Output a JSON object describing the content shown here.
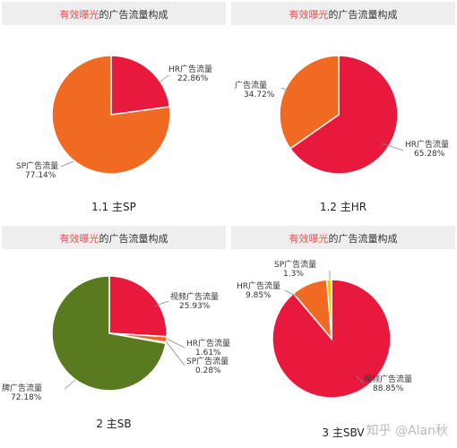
{
  "panels": [
    {
      "title_accent": "有效曝光",
      "title_rest": "的广告流量构成",
      "caption": "1.1 主SP",
      "chart_data": {
        "type": "pie",
        "title": "有效曝光的广告流量构成",
        "slices": [
          {
            "label": "HR广告流量",
            "value": 22.86,
            "display": "22.86%",
            "color": "#e8193d"
          },
          {
            "label": "SP广告流量",
            "value": 77.14,
            "display": "77.14%",
            "color": "#f06a22"
          }
        ]
      }
    },
    {
      "title_accent": "有效曝光",
      "title_rest": "的广告流量构成",
      "caption": "1.2 主HR",
      "chart_data": {
        "type": "pie",
        "title": "有效曝光的广告流量构成",
        "slices": [
          {
            "label": "HR广告流量",
            "value": 65.28,
            "display": "65.28%",
            "color": "#e8193d"
          },
          {
            "label": "广告流量",
            "value": 34.72,
            "display": "34.72%",
            "color": "#f06a22"
          }
        ]
      }
    },
    {
      "title_accent": "有效曝光",
      "title_rest": "的广告流量构成",
      "caption": "2 主SB",
      "chart_data": {
        "type": "pie",
        "title": "有效曝光的广告流量构成",
        "slices": [
          {
            "label": "视频广告流量",
            "value": 25.93,
            "display": "25.93%",
            "color": "#e8193d"
          },
          {
            "label": "HR广告流量",
            "value": 1.61,
            "display": "1.61%",
            "color": "#f06a22"
          },
          {
            "label": "SP广告流量",
            "value": 0.28,
            "display": "0.28%",
            "color": "#f5c400"
          },
          {
            "label": "牌广告流量",
            "value": 72.18,
            "display": "72.18%",
            "color": "#5a7a1f"
          }
        ]
      }
    },
    {
      "title_accent": "有效曝光",
      "title_rest": "的广告流量构成",
      "caption": "3 主SBV",
      "chart_data": {
        "type": "pie",
        "title": "有效曝光的广告流量构成",
        "slices": [
          {
            "label": "视频广告流量",
            "value": 88.85,
            "display": "88.85%",
            "color": "#e8193d"
          },
          {
            "label": "HR广告流量",
            "value": 9.85,
            "display": "9.85%",
            "color": "#f06a22"
          },
          {
            "label": "SP广告流量",
            "value": 1.3,
            "display": "1.3%",
            "color": "#f5c400"
          }
        ]
      }
    }
  ],
  "watermark": "知乎 @Alan秋"
}
